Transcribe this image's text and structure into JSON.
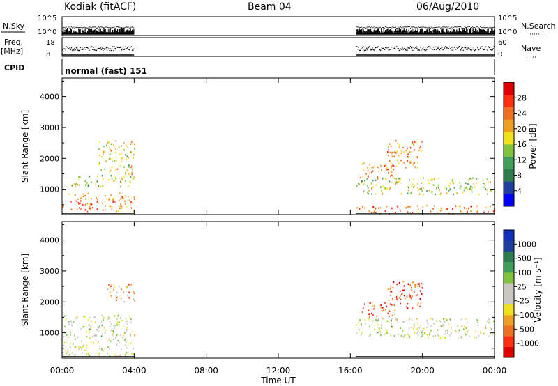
{
  "header": {
    "station": "Kodiak (fitACF)",
    "beam": "Beam 04",
    "date": "06/Aug/2010"
  },
  "aux_panels": {
    "nsky_label": "N.Sky",
    "nsky_ticks": [
      "10^5",
      "10^0"
    ],
    "nsearch_label": "N.Search",
    "nsearch_ticks": [
      "10^5",
      "10^0"
    ],
    "freq_label": "Freq.",
    "freq_unit": "[MHz]",
    "freq_ticks": [
      "18",
      "8"
    ],
    "nave_label": "Nave",
    "nave_ticks": [
      "60",
      "0"
    ],
    "cpid_label": "CPID",
    "cpid_value": "normal (fast) 151"
  },
  "chart_data": [
    {
      "type": "heatmap",
      "name": "power",
      "ylabel": "Slant Range [km]",
      "ylim": [
        180,
        4600
      ],
      "yticks": [
        "1000",
        "2000",
        "3000",
        "4000"
      ],
      "xlim": [
        0,
        24
      ],
      "data_windows_hours": [
        [
          0.0,
          4.0
        ],
        [
          16.3,
          24.0
        ]
      ],
      "colorbar": {
        "label": "Power [dB]",
        "colors": [
          "#0000ff",
          "#1e3fa0",
          "#2e7d4f",
          "#3fa05a",
          "#7fc43a",
          "#f0e020",
          "#f0a020",
          "#f07020",
          "#ff3010",
          "#dd0000"
        ],
        "ticks": [
          "4",
          "8",
          "12",
          "16",
          "20",
          "24",
          "28"
        ],
        "range": [
          0,
          32
        ]
      },
      "features": [
        {
          "t0": 0.0,
          "t1": 4.0,
          "r0": 300,
          "r1": 900,
          "level": 0.7
        },
        {
          "t0": 0.5,
          "t1": 4.0,
          "r0": 1100,
          "r1": 1500,
          "level": 0.5
        },
        {
          "t0": 2.0,
          "t1": 4.0,
          "r0": 1500,
          "r1": 2600,
          "level": 0.55
        },
        {
          "t0": 16.5,
          "t1": 18.5,
          "r0": 1400,
          "r1": 1900,
          "level": 0.75
        },
        {
          "t0": 18.0,
          "t1": 20.0,
          "r0": 1700,
          "r1": 2600,
          "level": 0.7
        },
        {
          "t0": 16.3,
          "t1": 24.0,
          "r0": 850,
          "r1": 1400,
          "level": 0.5
        },
        {
          "t0": 16.3,
          "t1": 24.0,
          "r0": 180,
          "r1": 500,
          "level": 0.75
        }
      ]
    },
    {
      "type": "heatmap",
      "name": "velocity",
      "ylabel": "Slant Range [km]",
      "ylim": [
        180,
        4600
      ],
      "yticks": [
        "1000",
        "2000",
        "3000",
        "4000"
      ],
      "xlim": [
        0,
        24
      ],
      "data_windows_hours": [
        [
          0.0,
          4.0
        ],
        [
          16.3,
          24.0
        ]
      ],
      "colorbar": {
        "label": "Velocity [m s⁻¹]",
        "colors": [
          "#dd0000",
          "#ff3010",
          "#f07020",
          "#f0a020",
          "#f0e020",
          "#c8c8c0",
          "#c8c8c0",
          "#7fc43a",
          "#3fa05a",
          "#2e7d4f",
          "#1e3fa0",
          "#1030c0"
        ],
        "ticks": [
          "-1000",
          "-500",
          "-100",
          "-25",
          "25",
          "100",
          "500",
          "1000"
        ]
      },
      "features": [
        {
          "t0": 0.0,
          "t1": 4.0,
          "r0": 200,
          "r1": 1600,
          "level": 0.5
        },
        {
          "t0": 0.0,
          "t1": 1.5,
          "r0": 180,
          "r1": 400,
          "level": 0.35
        },
        {
          "t0": 2.5,
          "t1": 4.0,
          "r0": 2000,
          "r1": 2600,
          "level": 0.3
        },
        {
          "t0": 16.5,
          "t1": 18.5,
          "r0": 1500,
          "r1": 2000,
          "level": 0.15
        },
        {
          "t0": 18.0,
          "t1": 20.0,
          "r0": 1800,
          "r1": 2700,
          "level": 0.15
        },
        {
          "t0": 16.3,
          "t1": 24.0,
          "r0": 850,
          "r1": 1500,
          "level": 0.5
        }
      ]
    }
  ],
  "xaxis": {
    "ticks": [
      "00:00",
      "04:00",
      "08:00",
      "12:00",
      "16:00",
      "20:00",
      "00:00"
    ],
    "label": "Time UT"
  }
}
